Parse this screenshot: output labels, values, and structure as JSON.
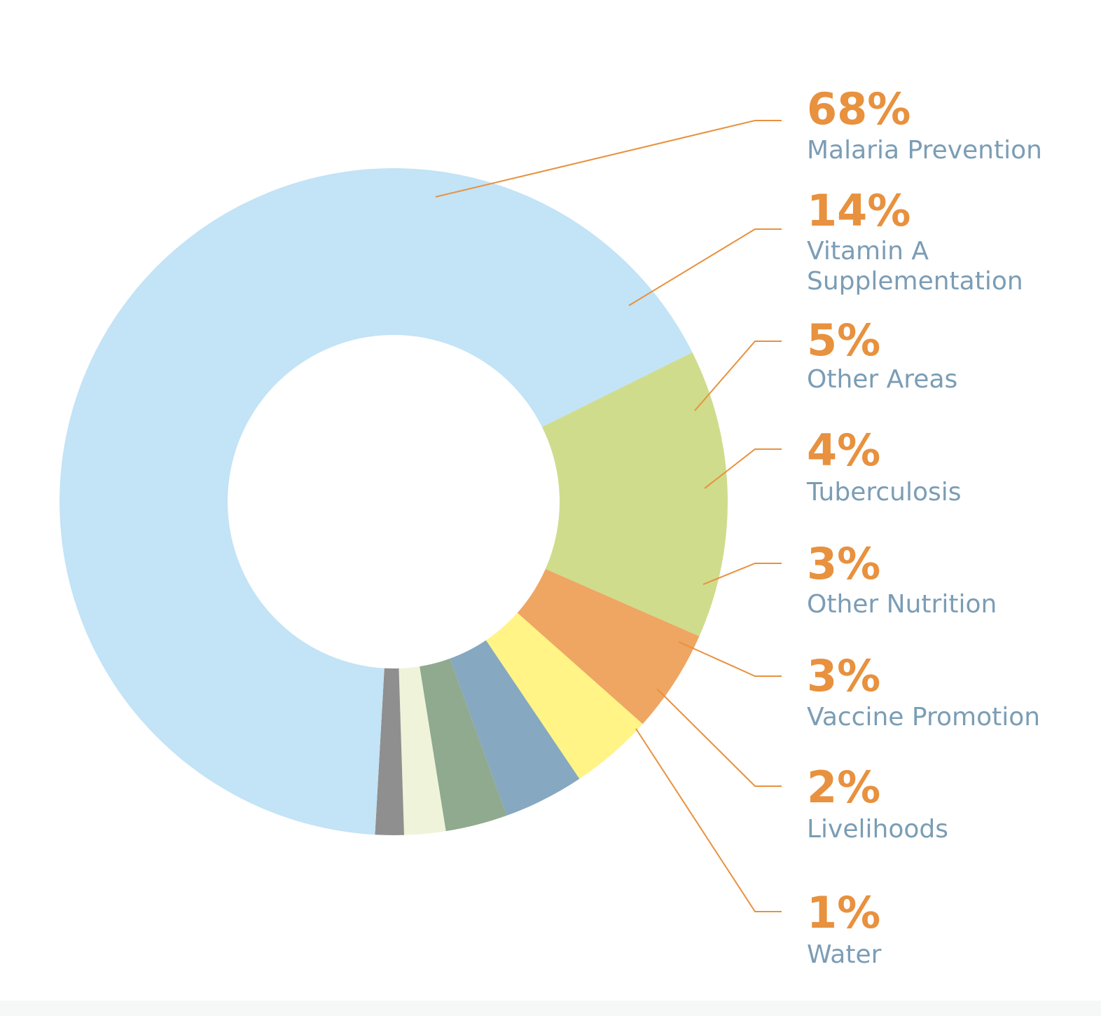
{
  "chart_data": {
    "type": "pie",
    "donut": true,
    "label_color": "#e8913e",
    "category_color": "#7b9db5",
    "leader_color": "#e8913e",
    "slices": [
      {
        "label": "Malaria Prevention",
        "value": 68,
        "value_label": "68%",
        "color": "#c3e3f6"
      },
      {
        "label": "Vitamin A Supplementation",
        "label_lines": [
          "Vitamin A",
          "Supplementation"
        ],
        "value": 14,
        "value_label": "14%",
        "color": "#cfdc8c"
      },
      {
        "label": "Other Areas",
        "value": 5,
        "value_label": "5%",
        "color": "#eea662"
      },
      {
        "label": "Tuberculosis",
        "value": 4,
        "value_label": "4%",
        "color": "#fff485"
      },
      {
        "label": "Other Nutrition",
        "value": 3,
        "value_label": "3%",
        "color": "#86a8c0"
      },
      {
        "label": "Vaccine Promotion",
        "value": 3,
        "value_label": "3%",
        "color": "#8faa8e"
      },
      {
        "label": "Livelihoods",
        "value": 2,
        "value_label": "2%",
        "color": "#eff3da"
      },
      {
        "label": "Water",
        "value": 1,
        "value_label": "1%",
        "color": "#8f8f8f"
      }
    ]
  }
}
